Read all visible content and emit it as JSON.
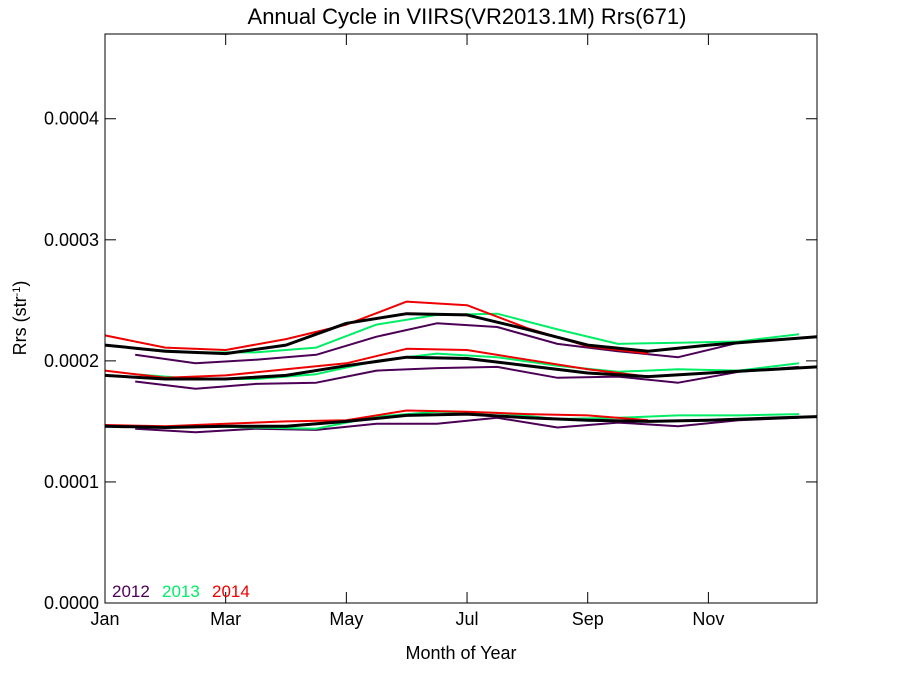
{
  "chart_data": {
    "type": "line",
    "title": "Annual Cycle in VIIRS(VR2013.1M) Rrs(671)",
    "xlabel": "Month of Year",
    "ylabel_main": "Rrs (str",
    "ylabel_sup": "-1",
    "ylabel_close": ")",
    "xlim": [
      1,
      12.8
    ],
    "ylim": [
      0.0,
      0.00047
    ],
    "x_ticks": [
      {
        "value": 1,
        "label": "Jan"
      },
      {
        "value": 3,
        "label": "Mar"
      },
      {
        "value": 5,
        "label": "May"
      },
      {
        "value": 7,
        "label": "Jul"
      },
      {
        "value": 9,
        "label": "Sep"
      },
      {
        "value": 11,
        "label": "Nov"
      }
    ],
    "y_ticks": [
      {
        "value": 0.0,
        "label": "0.0000"
      },
      {
        "value": 0.0001,
        "label": "0.0001"
      },
      {
        "value": 0.0002,
        "label": "0.0002"
      },
      {
        "value": 0.0003,
        "label": "0.0003"
      },
      {
        "value": 0.0004,
        "label": "0.0004"
      }
    ],
    "legend": {
      "placement": "bottom-left",
      "entries": [
        {
          "label": "2012",
          "color": "#4b0055"
        },
        {
          "label": "2013",
          "color": "#00ee66"
        },
        {
          "label": "2014",
          "color": "#ee0000"
        }
      ]
    },
    "colors": {
      "2012": "#4b0055",
      "2013": "#00ee66",
      "2014": "#ee0000",
      "climatology": "#000000"
    },
    "series": [
      {
        "group": "upper",
        "year": "2012",
        "x": [
          1.5,
          2.5,
          3.5,
          4.5,
          5.5,
          6.5,
          7.5,
          8.5,
          9.5,
          10.5,
          11.5,
          12.5
        ],
        "values": [
          0.000205,
          0.000198,
          0.000201,
          0.000205,
          0.00022,
          0.000231,
          0.000228,
          0.000214,
          0.000208,
          0.000203,
          0.000215,
          0.000219
        ]
      },
      {
        "group": "upper",
        "year": "2013",
        "x": [
          1.5,
          2.5,
          3.5,
          4.5,
          5.5,
          6.5,
          7.5,
          8.5,
          9.5,
          10.5,
          11.5,
          12.5
        ],
        "values": [
          0.00021,
          0.000207,
          0.000207,
          0.000211,
          0.00023,
          0.000238,
          0.000239,
          0.000226,
          0.000214,
          0.000215,
          0.000216,
          0.000222
        ]
      },
      {
        "group": "upper",
        "year": "2014",
        "x": [
          1,
          2,
          3,
          4,
          5,
          6,
          7,
          8,
          9,
          10
        ],
        "values": [
          0.000221,
          0.000211,
          0.000209,
          0.000218,
          0.00023,
          0.000249,
          0.000246,
          0.000227,
          0.000212,
          0.000206
        ]
      },
      {
        "group": "upper",
        "year": "climatology",
        "x": [
          1,
          2,
          3,
          4,
          5,
          6,
          7,
          8,
          9,
          10,
          11,
          12.8
        ],
        "values": [
          0.000213,
          0.000208,
          0.000206,
          0.000213,
          0.000231,
          0.000239,
          0.000238,
          0.000226,
          0.000213,
          0.000208,
          0.000213,
          0.00022
        ]
      },
      {
        "group": "middle",
        "year": "2012",
        "x": [
          1.5,
          2.5,
          3.5,
          4.5,
          5.5,
          6.5,
          7.5,
          8.5,
          9.5,
          10.5,
          11.5,
          12.5
        ],
        "values": [
          0.000183,
          0.000177,
          0.000181,
          0.000182,
          0.000192,
          0.000194,
          0.000195,
          0.000186,
          0.000187,
          0.000182,
          0.000191,
          0.000195
        ]
      },
      {
        "group": "middle",
        "year": "2013",
        "x": [
          1.5,
          2.5,
          3.5,
          4.5,
          5.5,
          6.5,
          7.5,
          8.5,
          9.5,
          10.5,
          11.5,
          12.5
        ],
        "values": [
          0.000189,
          0.000185,
          0.000185,
          0.000189,
          0.0002,
          0.000206,
          0.000203,
          0.000196,
          0.000191,
          0.000193,
          0.000192,
          0.000198
        ]
      },
      {
        "group": "middle",
        "year": "2014",
        "x": [
          1,
          2,
          3,
          4,
          5,
          6,
          7,
          8,
          9,
          10
        ],
        "values": [
          0.000192,
          0.000186,
          0.000188,
          0.000193,
          0.000198,
          0.00021,
          0.000209,
          0.000201,
          0.000193,
          0.000187
        ]
      },
      {
        "group": "middle",
        "year": "climatology",
        "x": [
          1,
          2,
          3,
          4,
          5,
          6,
          7,
          8,
          9,
          10,
          11,
          12.8
        ],
        "values": [
          0.000188,
          0.000185,
          0.000185,
          0.000188,
          0.000196,
          0.000203,
          0.000202,
          0.000196,
          0.00019,
          0.000187,
          0.00019,
          0.000195
        ]
      },
      {
        "group": "lower",
        "year": "2012",
        "x": [
          1.5,
          2.5,
          3.5,
          4.5,
          5.5,
          6.5,
          7.5,
          8.5,
          9.5,
          10.5,
          11.5,
          12.5
        ],
        "values": [
          0.000144,
          0.000141,
          0.000144,
          0.000143,
          0.000148,
          0.000148,
          0.000153,
          0.000145,
          0.000149,
          0.000146,
          0.000151,
          0.000153
        ]
      },
      {
        "group": "lower",
        "year": "2013",
        "x": [
          1.5,
          2.5,
          3.5,
          4.5,
          5.5,
          6.5,
          7.5,
          8.5,
          9.5,
          10.5,
          11.5,
          12.5
        ],
        "values": [
          0.000145,
          0.000146,
          0.000145,
          0.000144,
          0.000154,
          0.000158,
          0.000157,
          0.000152,
          0.000153,
          0.000155,
          0.000155,
          0.000156
        ]
      },
      {
        "group": "lower",
        "year": "2014",
        "x": [
          1,
          2,
          3,
          4,
          5,
          6,
          7,
          8,
          9,
          10
        ],
        "values": [
          0.000147,
          0.000146,
          0.000148,
          0.00015,
          0.000151,
          0.000159,
          0.000158,
          0.000156,
          0.000155,
          0.000151
        ]
      },
      {
        "group": "lower",
        "year": "climatology",
        "x": [
          1,
          2,
          3,
          4,
          5,
          6,
          7,
          8,
          9,
          10,
          11,
          12.8
        ],
        "values": [
          0.000146,
          0.000145,
          0.000146,
          0.000146,
          0.00015,
          0.000155,
          0.000156,
          0.000153,
          0.000151,
          0.00015,
          0.000151,
          0.000154
        ]
      }
    ]
  }
}
